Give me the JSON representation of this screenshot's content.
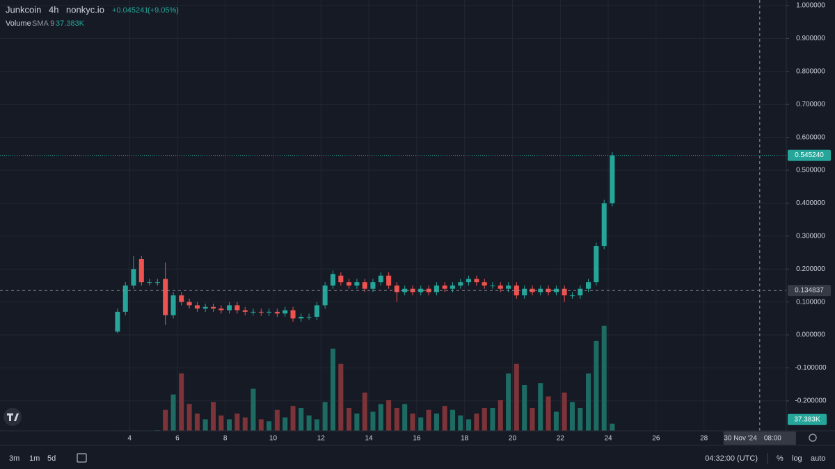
{
  "chart_data": {
    "type": "candlestick",
    "symbol": "Junkcoin",
    "interval": "4h",
    "exchange": "nonkyc.io",
    "change": "+0.045241",
    "change_pct": "(+9.05%)",
    "volume_title": "Volume",
    "volume_study": "SMA 9",
    "volume_legend": "37.383K",
    "up_color": "#26a69a",
    "down_color": "#ef5350",
    "volume_up_color": "#1d6b63",
    "volume_down_color": "#7d3438",
    "grid": true,
    "x": [
      3.5,
      3.83,
      4.17,
      4.5,
      4.83,
      5.17,
      5.5,
      5.83,
      6.17,
      6.5,
      6.83,
      7.17,
      7.5,
      7.83,
      8.17,
      8.5,
      8.83,
      9.17,
      9.5,
      9.83,
      10.17,
      10.5,
      10.83,
      11.17,
      11.5,
      11.83,
      12.17,
      12.5,
      12.83,
      13.17,
      13.5,
      13.83,
      14.17,
      14.5,
      14.83,
      15.17,
      15.5,
      15.83,
      16.17,
      16.5,
      16.83,
      17.17,
      17.5,
      17.83,
      18.17,
      18.5,
      18.83,
      19.17,
      19.5,
      19.83,
      20.17,
      20.5,
      20.83,
      21.17,
      21.5,
      21.83,
      22.17,
      22.5,
      22.83,
      23.17,
      23.5,
      23.83,
      24.17
    ],
    "open": [
      0.01,
      0.07,
      0.15,
      0.23,
      0.16,
      0.16,
      0.17,
      0.06,
      0.12,
      0.1,
      0.09,
      0.08,
      0.085,
      0.08,
      0.075,
      0.09,
      0.075,
      0.07,
      0.07,
      0.068,
      0.07,
      0.065,
      0.075,
      0.05,
      0.055,
      0.055,
      0.09,
      0.15,
      0.18,
      0.16,
      0.15,
      0.16,
      0.14,
      0.16,
      0.18,
      0.15,
      0.13,
      0.14,
      0.13,
      0.14,
      0.13,
      0.15,
      0.14,
      0.15,
      0.16,
      0.17,
      0.16,
      0.15,
      0.15,
      0.14,
      0.15,
      0.12,
      0.14,
      0.13,
      0.14,
      0.13,
      0.14,
      0.12,
      0.12,
      0.14,
      0.16,
      0.27,
      0.4
    ],
    "high": [
      0.08,
      0.16,
      0.24,
      0.24,
      0.17,
      0.17,
      0.22,
      0.13,
      0.13,
      0.11,
      0.1,
      0.095,
      0.095,
      0.09,
      0.1,
      0.1,
      0.085,
      0.08,
      0.08,
      0.08,
      0.08,
      0.085,
      0.085,
      0.065,
      0.065,
      0.1,
      0.16,
      0.195,
      0.19,
      0.17,
      0.17,
      0.17,
      0.17,
      0.19,
      0.19,
      0.16,
      0.15,
      0.15,
      0.15,
      0.15,
      0.16,
      0.16,
      0.16,
      0.17,
      0.18,
      0.18,
      0.17,
      0.16,
      0.16,
      0.16,
      0.16,
      0.15,
      0.15,
      0.15,
      0.15,
      0.15,
      0.15,
      0.13,
      0.15,
      0.17,
      0.28,
      0.41,
      0.555
    ],
    "low": [
      0.005,
      0.06,
      0.14,
      0.15,
      0.15,
      0.15,
      0.03,
      0.05,
      0.09,
      0.08,
      0.07,
      0.07,
      0.07,
      0.065,
      0.065,
      0.065,
      0.06,
      0.06,
      0.058,
      0.058,
      0.055,
      0.055,
      0.04,
      0.04,
      0.045,
      0.045,
      0.08,
      0.14,
      0.15,
      0.14,
      0.14,
      0.13,
      0.13,
      0.15,
      0.14,
      0.1,
      0.12,
      0.12,
      0.12,
      0.12,
      0.12,
      0.13,
      0.13,
      0.14,
      0.15,
      0.15,
      0.14,
      0.14,
      0.13,
      0.13,
      0.11,
      0.11,
      0.12,
      0.12,
      0.12,
      0.12,
      0.1,
      0.11,
      0.11,
      0.13,
      0.15,
      0.26,
      0.39
    ],
    "close": [
      0.07,
      0.15,
      0.2,
      0.16,
      0.16,
      0.16,
      0.06,
      0.12,
      0.1,
      0.09,
      0.08,
      0.085,
      0.08,
      0.075,
      0.09,
      0.075,
      0.07,
      0.07,
      0.068,
      0.07,
      0.065,
      0.075,
      0.05,
      0.055,
      0.055,
      0.09,
      0.15,
      0.185,
      0.16,
      0.15,
      0.16,
      0.14,
      0.16,
      0.18,
      0.15,
      0.13,
      0.14,
      0.13,
      0.14,
      0.13,
      0.15,
      0.14,
      0.15,
      0.16,
      0.17,
      0.16,
      0.15,
      0.15,
      0.14,
      0.15,
      0.12,
      0.14,
      0.13,
      0.14,
      0.13,
      0.14,
      0.12,
      0.12,
      0.14,
      0.16,
      0.27,
      0.4,
      0.54524
    ],
    "volume": [
      2000,
      2000,
      2000,
      2000,
      2000,
      3000,
      110000,
      190000,
      300000,
      140000,
      90000,
      60000,
      150000,
      80000,
      60000,
      90000,
      70000,
      220000,
      60000,
      50000,
      110000,
      70000,
      130000,
      120000,
      80000,
      60000,
      150000,
      430000,
      350000,
      120000,
      90000,
      200000,
      100000,
      140000,
      160000,
      120000,
      140000,
      90000,
      70000,
      110000,
      90000,
      130000,
      110000,
      80000,
      60000,
      90000,
      120000,
      120000,
      160000,
      300000,
      350000,
      240000,
      120000,
      250000,
      180000,
      100000,
      200000,
      150000,
      120000,
      300000,
      470000,
      550000,
      37383
    ],
    "last_price": {
      "value": 0.54524,
      "label": "0.545240"
    },
    "last_volume": {
      "value": 37383,
      "label": "37.383K"
    },
    "crosshair": {
      "price": {
        "value": 0.134837,
        "label": "0.134837"
      },
      "x": 30.33,
      "time": "30 Nov '24",
      "clock": "08:00"
    },
    "xlim": [
      -1.41,
      31.44
    ],
    "xticks": [
      4,
      6,
      8,
      10,
      12,
      14,
      16,
      18,
      20,
      22,
      24,
      26,
      28
    ],
    "ylim": [
      -0.2911,
      1.0169
    ],
    "yticks": [
      {
        "value": 1,
        "label": "1.000000"
      },
      {
        "value": 0.9,
        "label": "0.900000"
      },
      {
        "value": 0.8,
        "label": "0.800000"
      },
      {
        "value": 0.7,
        "label": "0.700000"
      },
      {
        "value": 0.6,
        "label": "0.600000"
      },
      {
        "value": 0.5,
        "label": "0.500000"
      },
      {
        "value": 0.4,
        "label": "0.400000"
      },
      {
        "value": 0.3,
        "label": "0.300000"
      },
      {
        "value": 0.2,
        "label": "0.200000"
      },
      {
        "value": 0.1,
        "label": "0.100000"
      },
      {
        "value": 0,
        "label": "0.000000"
      },
      {
        "value": -0.1,
        "label": "-0.100000"
      },
      {
        "value": -0.2,
        "label": "-0.200000"
      }
    ],
    "y2lim": [
      0,
      600000
    ],
    "toolbar": {
      "ranges": [
        "3m",
        "1m",
        "5d"
      ],
      "clock": "04:32:00 (UTC)",
      "percent": "%",
      "log": "log",
      "auto": "auto"
    }
  }
}
